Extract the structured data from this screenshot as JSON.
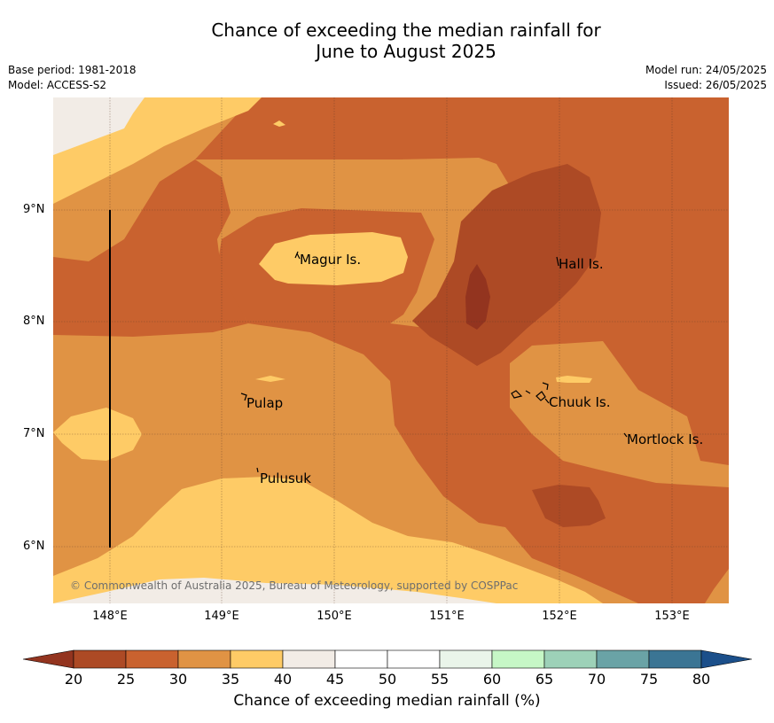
{
  "title_line1": "Chance of exceeding the median rainfall for",
  "title_line2": "June to August 2025",
  "meta": {
    "base_period": "Base period: 1981-2018",
    "model": "Model: ACCESS-S2",
    "model_run": "Model run: 24/05/2025",
    "issued": "Issued: 26/05/2025"
  },
  "latitude_ticks": [
    "9°N",
    "8°N",
    "7°N",
    "6°N"
  ],
  "longitude_ticks": [
    "148°E",
    "149°E",
    "150°E",
    "151°E",
    "152°E",
    "153°E"
  ],
  "places": [
    "Magur Is.",
    "Hall Is.",
    "Pulap",
    "Chuuk Is.",
    "Mortlock Is.",
    "Pulusuk"
  ],
  "copyright": "© Commonwealth of Australia 2025, Bureau of Meteorology, supported by COSPPac",
  "colorbar": {
    "label": "Chance of exceeding median rainfall (%)",
    "ticks": [
      "20",
      "25",
      "30",
      "35",
      "40",
      "45",
      "50",
      "55",
      "60",
      "65",
      "70",
      "75",
      "80"
    ],
    "colors": {
      "below_20": "#93341f",
      "c20_25": "#ad4a25",
      "c25_30": "#c9622f",
      "c30_35": "#e09344",
      "c35_40": "#fecb66",
      "c40_45": "#f2ece6",
      "c45_50": "#ffffff",
      "c50_55": "#ffffff",
      "c55_60": "#eaf5ea",
      "c60_65": "#c6f7c6",
      "c65_70": "#9dd1b8",
      "c70_75": "#6aa3a6",
      "c75_80": "#3b7594",
      "above_80": "#1b4f8a"
    }
  }
}
